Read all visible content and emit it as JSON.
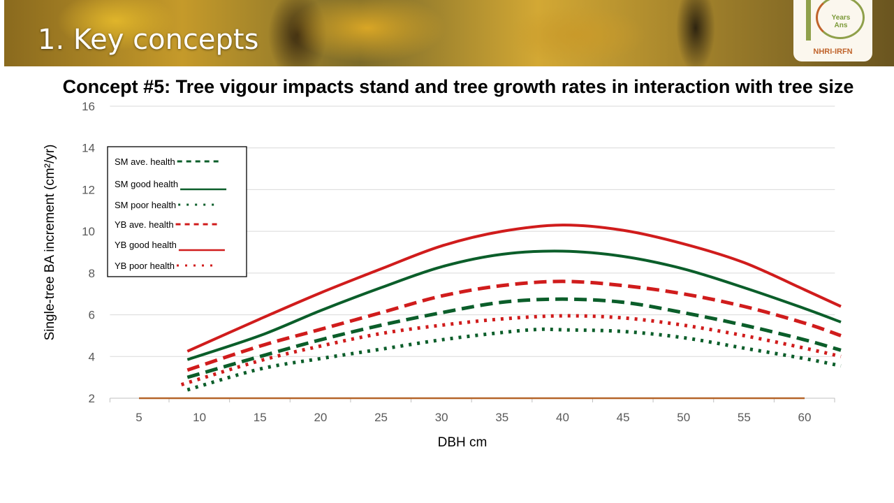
{
  "header": {
    "title": "1. Key concepts",
    "logo_text": [
      "Years",
      "Ans",
      "NHRI-IRFN"
    ]
  },
  "slide_title": "Concept #5: Tree vigour impacts stand and tree growth rates in interaction with tree size",
  "chart_data": {
    "type": "line",
    "title": "",
    "xlabel": "DBH cm",
    "ylabel": "Single-tree BA increment (cm²/yr)",
    "xlim": [
      2.6,
      62.5
    ],
    "ylim": [
      2,
      16
    ],
    "xticks": [
      5,
      10,
      15,
      20,
      25,
      30,
      35,
      40,
      45,
      50,
      55,
      60
    ],
    "yticks": [
      2,
      4,
      6,
      8,
      10,
      12,
      14,
      16
    ],
    "grid": "horizontal",
    "legend_position": "top-left",
    "series": [
      {
        "name": "SM ave. health",
        "color": "#0b5e2a",
        "style": "dashed",
        "x": [
          9,
          15,
          20,
          25,
          30,
          35,
          40,
          45,
          50,
          55,
          60,
          63
        ],
        "y": [
          3.0,
          4.0,
          4.8,
          5.5,
          6.1,
          6.6,
          6.75,
          6.6,
          6.1,
          5.5,
          4.8,
          4.3
        ]
      },
      {
        "name": "SM good health",
        "color": "#0b5e2a",
        "style": "solid",
        "x": [
          9,
          15,
          20,
          25,
          30,
          35,
          40,
          45,
          50,
          55,
          60,
          63
        ],
        "y": [
          3.85,
          5.0,
          6.2,
          7.3,
          8.3,
          8.9,
          9.05,
          8.8,
          8.2,
          7.3,
          6.3,
          5.65
        ]
      },
      {
        "name": "SM poor health",
        "color": "#0b5e2a",
        "style": "dotted",
        "x": [
          9,
          15,
          20,
          25,
          30,
          35,
          38,
          40,
          45,
          50,
          55,
          60,
          63
        ],
        "y": [
          2.4,
          3.4,
          3.9,
          4.35,
          4.8,
          5.15,
          5.3,
          5.28,
          5.2,
          4.9,
          4.4,
          3.9,
          3.55
        ]
      },
      {
        "name": "YB ave. health",
        "color": "#d01c1c",
        "style": "dashed",
        "x": [
          9,
          15,
          20,
          25,
          30,
          35,
          40,
          45,
          50,
          55,
          60,
          63
        ],
        "y": [
          3.35,
          4.5,
          5.3,
          6.1,
          6.9,
          7.4,
          7.6,
          7.4,
          7.0,
          6.4,
          5.6,
          5.0
        ]
      },
      {
        "name": "YB good health",
        "color": "#d01c1c",
        "style": "solid",
        "x": [
          9,
          15,
          20,
          25,
          30,
          35,
          40,
          45,
          50,
          55,
          60,
          63
        ],
        "y": [
          4.25,
          5.8,
          7.05,
          8.2,
          9.3,
          10.0,
          10.3,
          10.05,
          9.4,
          8.5,
          7.2,
          6.4
        ]
      },
      {
        "name": "YB poor health",
        "color": "#d01c1c",
        "style": "dotted",
        "x": [
          8.5,
          15,
          20,
          25,
          30,
          35,
          40,
          45,
          50,
          55,
          60,
          63
        ],
        "y": [
          2.65,
          3.8,
          4.5,
          5.1,
          5.5,
          5.8,
          5.95,
          5.85,
          5.5,
          5.0,
          4.4,
          4.0
        ]
      },
      {
        "color": "#b5652a",
        "style": "solid",
        "x": [
          5,
          60
        ],
        "y": [
          2,
          2
        ]
      }
    ]
  }
}
